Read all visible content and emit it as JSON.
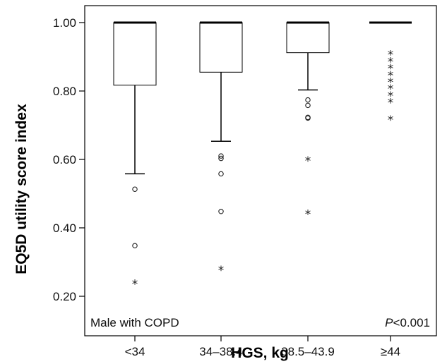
{
  "chart_data": {
    "type": "boxplot",
    "xlabel": "HGS, kg",
    "ylabel": "EQ5D utility score index",
    "ylim": [
      0.2,
      1.0
    ],
    "yticks": [
      "0.20",
      "0.40",
      "0.60",
      "0.80",
      "1.00"
    ],
    "categories": [
      "<34",
      "34–38.4",
      "38.5–43.9",
      "≥44"
    ],
    "boxes": [
      {
        "category": "<34",
        "whisker_low": 0.558,
        "q1": 0.817,
        "median": 1.0,
        "q3": 1.0,
        "whisker_high": 1.0,
        "outliers": [
          0.513,
          0.348
        ],
        "extremes": [
          0.24
        ]
      },
      {
        "category": "34–38.4",
        "whisker_low": 0.653,
        "q1": 0.855,
        "median": 1.0,
        "q3": 1.0,
        "whisker_high": 1.0,
        "outliers": [
          0.61,
          0.603,
          0.558,
          0.448
        ],
        "extremes": [
          0.28
        ]
      },
      {
        "category": "38.5–43.9",
        "whisker_low": 0.803,
        "q1": 0.912,
        "median": 1.0,
        "q3": 1.0,
        "whisker_high": 1.0,
        "outliers": [
          0.774,
          0.758,
          0.723,
          0.721
        ],
        "extremes": [
          0.6,
          0.444
        ]
      },
      {
        "category": "≥44",
        "whisker_low": 1.0,
        "q1": 1.0,
        "median": 1.0,
        "q3": 1.0,
        "whisker_high": 1.0,
        "outliers": [],
        "extremes": [
          0.91,
          0.89,
          0.87,
          0.85,
          0.83,
          0.81,
          0.79,
          0.77,
          0.72
        ]
      }
    ],
    "annotations": {
      "group_label": "Male with COPD",
      "p_prefix": "P",
      "p_rest": "<0.001"
    }
  }
}
